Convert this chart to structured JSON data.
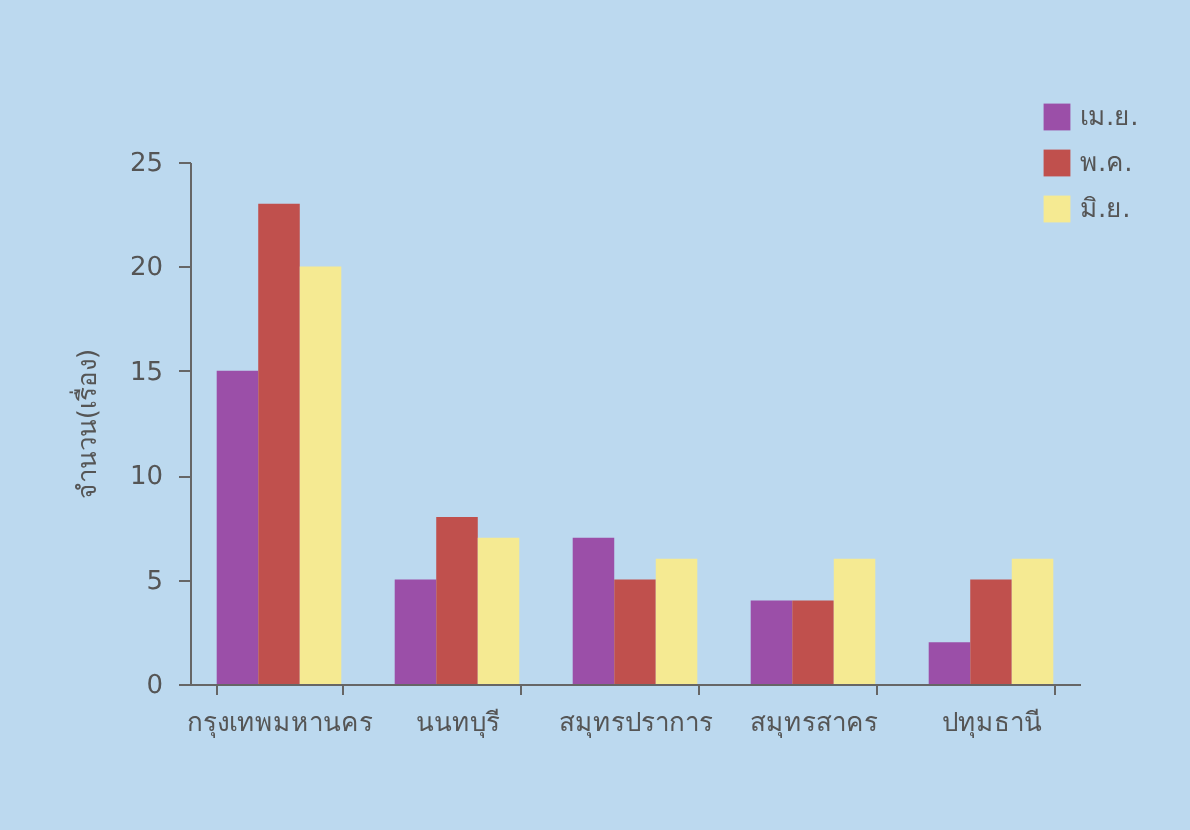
{
  "chart_data": {
    "type": "bar",
    "ylabel": "จำนวน(เรื่อง)",
    "categories": [
      "กรุงเทพมหานคร",
      "นนทบุรี",
      "สมุทรปราการ",
      "สมุทรสาคร",
      "ปทุมธานี"
    ],
    "series": [
      {
        "name": "เม.ย.",
        "color": "#9b4fa8",
        "values": [
          15,
          5,
          7,
          4,
          2
        ]
      },
      {
        "name": "พ.ค.",
        "color": "#c0504d",
        "values": [
          23,
          8,
          5,
          4,
          5
        ]
      },
      {
        "name": "มิ.ย.",
        "color": "#f5ea92",
        "values": [
          20,
          7,
          6,
          6,
          6
        ]
      }
    ],
    "ylim": [
      0,
      25
    ],
    "yticks": [
      0,
      5,
      10,
      15,
      20,
      25
    ],
    "grid": false,
    "legend": "top right"
  }
}
